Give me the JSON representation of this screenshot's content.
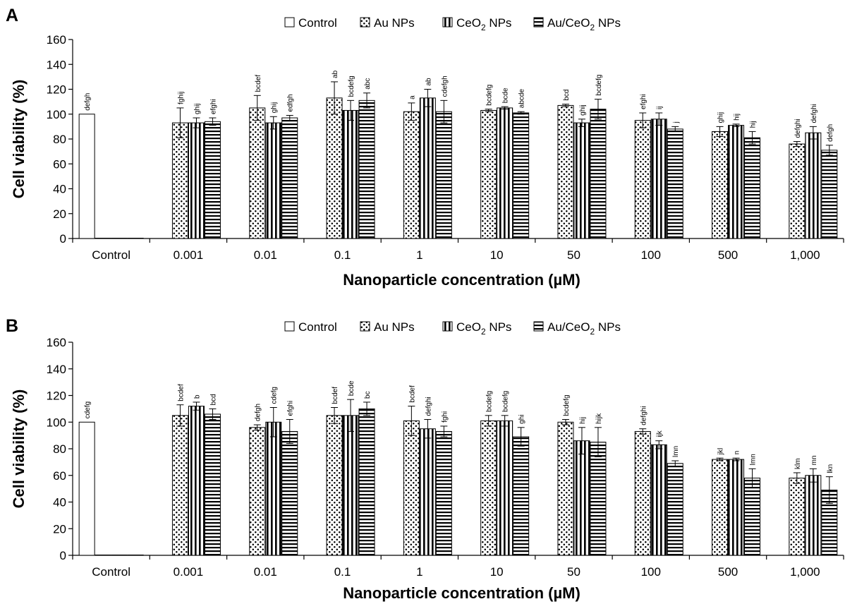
{
  "chart_data": [
    {
      "panel_label": "A",
      "type": "bar",
      "categories": [
        "Control",
        "0.001",
        "0.01",
        "0.1",
        "1",
        "10",
        "50",
        "100",
        "500",
        "1,000"
      ],
      "xlabel": "Nanoparticle concentration (µM)",
      "ylabel": "Cell viability (%)",
      "ylim": [
        0,
        160
      ],
      "yticks": [
        0,
        20,
        40,
        60,
        80,
        100,
        120,
        140,
        160
      ],
      "legend_position": "top-center",
      "grid": false,
      "series": [
        {
          "name": "Control",
          "pattern": "white",
          "values": [
            100,
            null,
            null,
            null,
            null,
            null,
            null,
            null,
            null,
            null
          ],
          "errors": [
            0,
            null,
            null,
            null,
            null,
            null,
            null,
            null,
            null,
            null
          ],
          "letters": [
            "defgh",
            "",
            "",
            "",
            "",
            "",
            "",
            "",
            "",
            ""
          ]
        },
        {
          "name": "Au NPs",
          "pattern": "dots",
          "values": [
            0,
            93,
            105,
            113,
            102,
            103,
            107,
            95,
            86,
            76
          ],
          "errors": [
            0,
            12,
            10,
            13,
            7,
            1,
            1,
            6,
            4,
            2
          ],
          "letters": [
            "",
            "fghij",
            "bcdef",
            "ab",
            "a",
            "bcdefg",
            "bcd",
            "efghi",
            "ghij",
            "defghi"
          ]
        },
        {
          "name": "CeO2 NPs",
          "pattern": "vertical",
          "values": [
            0,
            93,
            93,
            103,
            113,
            105,
            93,
            96,
            91,
            85
          ],
          "errors": [
            0,
            4,
            5,
            8,
            7,
            1,
            3,
            5,
            1,
            5
          ],
          "letters": [
            "",
            "ghij",
            "ghij",
            "bcdefg",
            "ab",
            "bcde",
            "ghij",
            "ij",
            "hij",
            "defghi"
          ]
        },
        {
          "name": "Au/CeO2 NPs",
          "pattern": "horizontal",
          "values": [
            0,
            94,
            97,
            111,
            102,
            101,
            104,
            88,
            81,
            71
          ],
          "errors": [
            0,
            3,
            2,
            6,
            9,
            1,
            8,
            2,
            5,
            4
          ],
          "letters": [
            "",
            "efghi",
            "edfgh",
            "abc",
            "cdefgh",
            "abcde",
            "bcdefg",
            "j",
            "hij",
            "defgh"
          ]
        }
      ]
    },
    {
      "panel_label": "B",
      "type": "bar",
      "categories": [
        "Control",
        "0.001",
        "0.01",
        "0.1",
        "1",
        "10",
        "50",
        "100",
        "500",
        "1,000"
      ],
      "xlabel": "Nanoparticle concentration (µM)",
      "ylabel": "Cell viability (%)",
      "ylim": [
        0,
        160
      ],
      "yticks": [
        0,
        20,
        40,
        60,
        80,
        100,
        120,
        140,
        160
      ],
      "legend_position": "top-center",
      "grid": false,
      "series": [
        {
          "name": "Control",
          "pattern": "white",
          "values": [
            100,
            null,
            null,
            null,
            null,
            null,
            null,
            null,
            null,
            null
          ],
          "errors": [
            0,
            null,
            null,
            null,
            null,
            null,
            null,
            null,
            null,
            null
          ],
          "letters": [
            "cdefg",
            "",
            "",
            "",
            "",
            "",
            "",
            "",
            "",
            ""
          ]
        },
        {
          "name": "Au NPs",
          "pattern": "dots",
          "values": [
            0,
            105,
            96,
            105,
            101,
            101,
            100,
            93,
            72,
            58
          ],
          "errors": [
            0,
            8,
            2,
            6,
            11,
            4,
            2,
            2,
            1,
            4
          ],
          "letters": [
            "",
            "bcdef",
            "defgh",
            "bcdef",
            "bcdef",
            "bcdefg",
            "bcdefg",
            "defghi",
            "jkl",
            "klm"
          ]
        },
        {
          "name": "CeO2 NPs",
          "pattern": "vertical",
          "values": [
            0,
            112,
            100,
            105,
            95,
            101,
            86,
            83,
            72,
            60
          ],
          "errors": [
            0,
            3,
            11,
            12,
            7,
            4,
            10,
            3,
            1,
            5
          ],
          "letters": [
            "",
            "b",
            "cdefg",
            "bcde",
            "defghi",
            "bcdefg",
            "hij",
            "ijk",
            "n",
            "mn"
          ]
        },
        {
          "name": "Au/CeO2 NPs",
          "pattern": "horizontal",
          "values": [
            0,
            106,
            93,
            110,
            93,
            89,
            85,
            69,
            58,
            49
          ],
          "errors": [
            0,
            4,
            9,
            5,
            4,
            7,
            11,
            2,
            7,
            10
          ],
          "letters": [
            "",
            "bcd",
            "efghi",
            "bc",
            "fghi",
            "ghi",
            "hijk",
            "lmn",
            "lmn",
            "lkn"
          ]
        }
      ]
    }
  ]
}
